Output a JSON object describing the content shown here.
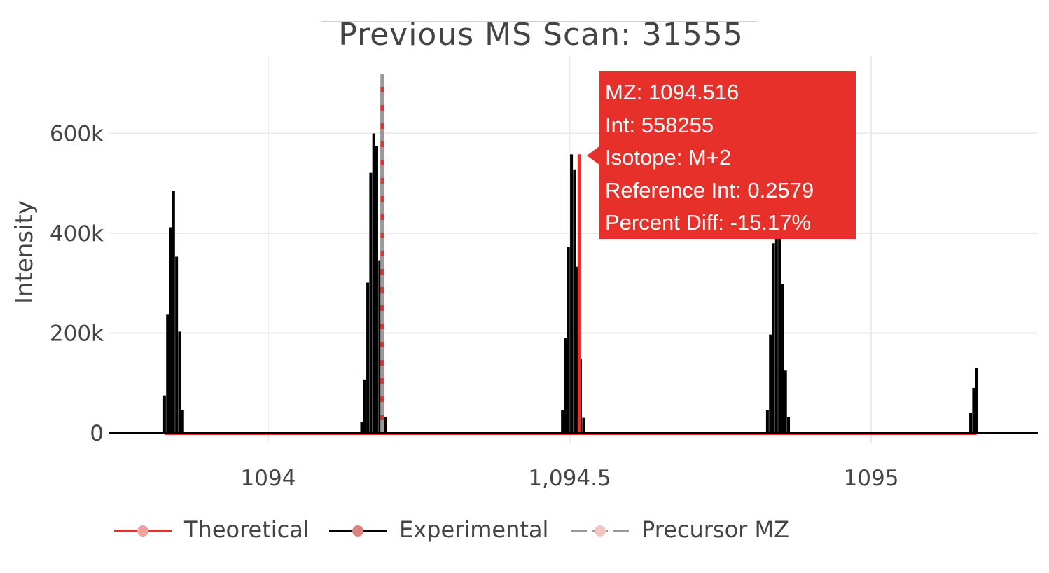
{
  "chart_data": {
    "type": "bar",
    "title": "Previous MS Scan: 31555",
    "xlabel": "",
    "ylabel": "Intensity",
    "xlim": [
      1093.865,
      1095.27
    ],
    "ylim": [
      -20000,
      750000
    ],
    "x_ticks": [
      {
        "value": 1094,
        "label": "1094"
      },
      {
        "value": 1094.5,
        "label": "1,094.5"
      },
      {
        "value": 1095,
        "label": "1095"
      }
    ],
    "y_ticks": [
      {
        "value": 0,
        "label": "0"
      },
      {
        "value": 200000,
        "label": "200k"
      },
      {
        "value": 400000,
        "label": "400k"
      },
      {
        "value": 600000,
        "label": "600k"
      }
    ],
    "grid": true,
    "legend_position": "bottom",
    "series": [
      {
        "name": "Theoretical",
        "color": "#e8302b",
        "x": [
          1094.189,
          1094.516
        ],
        "y": [
          695000,
          558255
        ]
      },
      {
        "name": "Experimental",
        "color": "#000000",
        "x": [
          1093.828,
          1093.833,
          1093.838,
          1093.843,
          1093.848,
          1093.853,
          1093.858,
          1093.863,
          1094.155,
          1094.16,
          1094.165,
          1094.17,
          1094.175,
          1094.18,
          1094.185,
          1094.19,
          1094.195,
          1094.2,
          1094.205,
          1094.21,
          1094.488,
          1094.493,
          1094.498,
          1094.503,
          1094.508,
          1094.513,
          1094.518,
          1094.523,
          1094.528,
          1094.828,
          1094.833,
          1094.838,
          1094.843,
          1094.848,
          1094.853,
          1094.858,
          1094.863,
          1094.868,
          1095.165,
          1095.17,
          1095.175
        ],
        "y": [
          75000,
          238000,
          412000,
          485000,
          353000,
          203000,
          45000,
          0,
          22000,
          107000,
          301000,
          521000,
          600000,
          575000,
          346000,
          128000,
          32000,
          0,
          0,
          0,
          45000,
          190000,
          373000,
          558000,
          528000,
          333000,
          148000,
          30000,
          0,
          45000,
          197000,
          380000,
          390000,
          390000,
          298000,
          126000,
          32000,
          0,
          40000,
          90000,
          130000
        ]
      },
      {
        "name": "Precursor MZ",
        "color": "#999999",
        "x": [
          1094.189
        ],
        "y": [
          720000
        ]
      }
    ],
    "hover": {
      "mz_label": "MZ: 1094.516",
      "int_label": "Int: 558255",
      "isotope_label": "Isotope: M+2",
      "ref_label": "Reference Int: 0.2579",
      "diff_label": "Percent Diff: -15.17%"
    }
  }
}
